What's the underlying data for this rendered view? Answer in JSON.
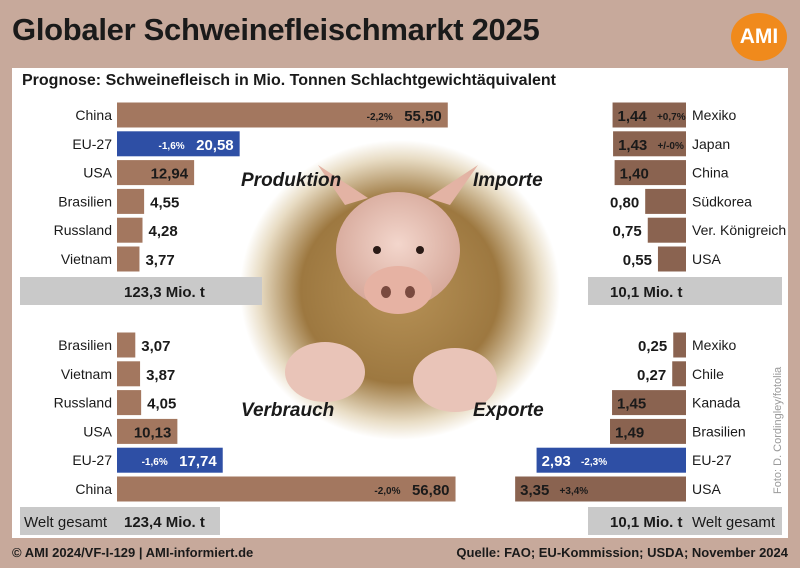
{
  "header": {
    "title": "Globaler Schweinefleischmarkt 2025",
    "logo": "AMI",
    "subtitle": "Prognose: Schweinefleisch in Mio. Tonnen Schlachtgewichtäquivalent"
  },
  "footer": {
    "left": "© AMI 2024/VF-I-129 | AMI-informiert.de",
    "right": "Quelle: FAO; EU-Kommission; USDA; November 2024"
  },
  "photo_credit": "Foto: D. Cordingley/fotolia",
  "colors": {
    "bar": "#a3775f",
    "bar_dark": "#8a6350",
    "highlight": "#2e4fa5",
    "total_box": "#c9c9c9",
    "frame": "#c7a99b",
    "logo": "#f08a1c"
  },
  "chart_data": [
    {
      "type": "bar",
      "orientation": "horizontal",
      "title": "Produktion",
      "unit": "Mio. t",
      "categories": [
        "China",
        "EU-27",
        "USA",
        "Brasilien",
        "Russland",
        "Vietnam"
      ],
      "values": [
        55.5,
        20.58,
        12.94,
        4.55,
        4.28,
        3.77
      ],
      "value_labels": [
        "55,50",
        "20,58",
        "12,94",
        "4,55",
        "4,28",
        "3,77"
      ],
      "changes": [
        "-2,2%",
        "-1,6%",
        "",
        "",
        "",
        ""
      ],
      "highlight": "EU-27",
      "total": "123,3 Mio. t",
      "total_label": ""
    },
    {
      "type": "bar",
      "orientation": "horizontal",
      "title": "Importe",
      "unit": "Mio. t",
      "categories": [
        "Mexiko",
        "Japan",
        "China",
        "Südkorea",
        "Ver. Königreich",
        "USA"
      ],
      "values": [
        1.44,
        1.43,
        1.4,
        0.8,
        0.75,
        0.55
      ],
      "value_labels": [
        "1,44",
        "1,43",
        "1,40",
        "0,80",
        "0,75",
        "0,55"
      ],
      "changes": [
        "+0,7%",
        "+/-0%",
        "",
        "",
        "",
        ""
      ],
      "highlight": "",
      "total": "10,1 Mio. t",
      "total_label": ""
    },
    {
      "type": "bar",
      "orientation": "horizontal",
      "title": "Verbrauch",
      "unit": "Mio. t",
      "categories": [
        "Brasilien",
        "Vietnam",
        "Russland",
        "USA",
        "EU-27",
        "China"
      ],
      "values": [
        3.07,
        3.87,
        4.05,
        10.13,
        17.74,
        56.8
      ],
      "value_labels": [
        "3,07",
        "3,87",
        "4,05",
        "10,13",
        "17,74",
        "56,80"
      ],
      "changes": [
        "",
        "",
        "",
        "",
        "-1,6%",
        "-2,0%"
      ],
      "highlight": "EU-27",
      "total": "123,4 Mio. t",
      "total_label": "Welt gesamt"
    },
    {
      "type": "bar",
      "orientation": "horizontal",
      "title": "Exporte",
      "unit": "Mio. t",
      "categories": [
        "Mexiko",
        "Chile",
        "Kanada",
        "Brasilien",
        "EU-27",
        "USA"
      ],
      "values": [
        0.25,
        0.27,
        1.45,
        1.49,
        2.93,
        3.35
      ],
      "value_labels": [
        "0,25",
        "0,27",
        "1,45",
        "1,49",
        "2,93",
        "3,35"
      ],
      "changes": [
        "",
        "",
        "",
        "",
        "-2,3%",
        "+3,4%"
      ],
      "highlight": "EU-27",
      "total": "10,1 Mio. t",
      "total_label": "Welt gesamt"
    }
  ]
}
